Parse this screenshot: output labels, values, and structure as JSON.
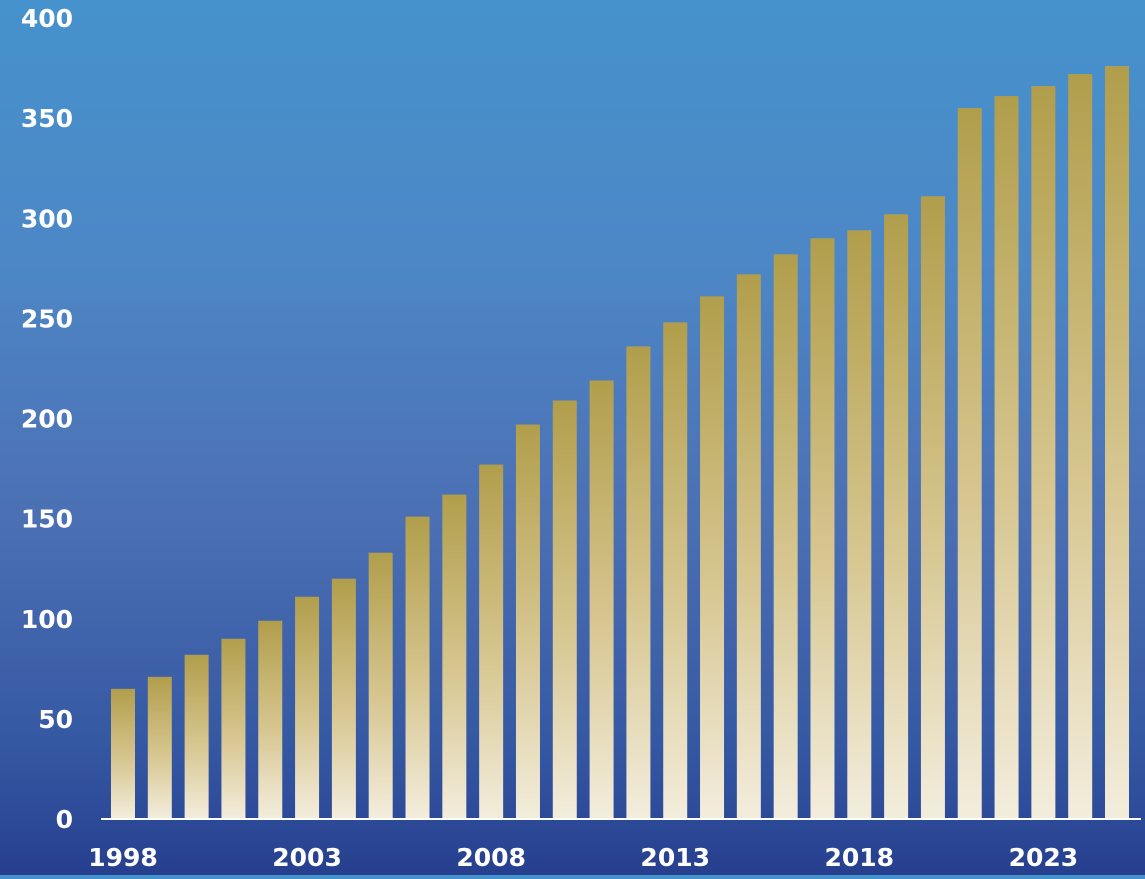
{
  "chart_data": {
    "type": "bar",
    "categories": [
      1998,
      1999,
      2000,
      2001,
      2002,
      2003,
      2004,
      2005,
      2006,
      2007,
      2008,
      2009,
      2010,
      2011,
      2012,
      2013,
      2014,
      2015,
      2016,
      2017,
      2018,
      2019,
      2020,
      2021,
      2022,
      2023,
      2024,
      2025
    ],
    "x_tick_labels": [
      "1998",
      "2003",
      "2008",
      "2013",
      "2018",
      "2023"
    ],
    "y_tick_labels": [
      "0",
      "50",
      "100",
      "150",
      "200",
      "250",
      "300",
      "350",
      "400"
    ],
    "values": [
      65,
      71,
      82,
      90,
      99,
      111,
      120,
      133,
      151,
      162,
      177,
      197,
      209,
      219,
      236,
      248,
      261,
      272,
      282,
      290,
      294,
      302,
      311,
      355,
      361,
      366,
      372,
      376
    ],
    "ylim": [
      0,
      400
    ],
    "title": "",
    "xlabel": "",
    "ylabel": "",
    "grid": false,
    "colors": {
      "bar_top": "#b19e4c",
      "bar_bottom": "#f3eddd",
      "axis_line": "#ffffff",
      "tick_text": "#ffffff"
    }
  }
}
